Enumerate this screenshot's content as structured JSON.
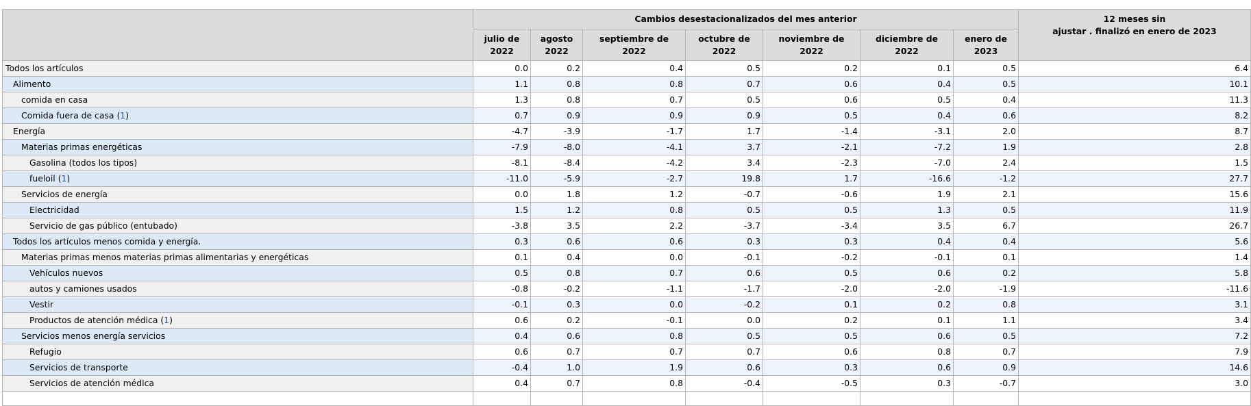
{
  "header": {
    "group_label": "Cambios desestacionalizados del mes anterior",
    "twelve_month_label_line1": "12 meses sin",
    "twelve_month_label_line2": "ajustar . finalizó en enero de 2023",
    "months": [
      {
        "line1": "julio de",
        "line2": "2022"
      },
      {
        "line1": "agosto",
        "line2": "2022"
      },
      {
        "line1": "septiembre de",
        "line2": "2022"
      },
      {
        "line1": "octubre de",
        "line2": "2022"
      },
      {
        "line1": "noviembre de",
        "line2": "2022"
      },
      {
        "line1": "diciembre de",
        "line2": "2022"
      },
      {
        "line1": "enero de",
        "line2": "2023"
      }
    ]
  },
  "rows": [
    {
      "label": "Todos los artículos",
      "level": 0,
      "footnote": "",
      "values": [
        "0.0",
        "0.2",
        "0.4",
        "0.5",
        "0.2",
        "0.1",
        "0.5"
      ],
      "annual": "6.4"
    },
    {
      "label": "Alimento",
      "level": 1,
      "footnote": "",
      "values": [
        "1.1",
        "0.8",
        "0.8",
        "0.7",
        "0.6",
        "0.4",
        "0.5"
      ],
      "annual": "10.1"
    },
    {
      "label": "comida en casa",
      "level": 2,
      "footnote": "",
      "values": [
        "1.3",
        "0.8",
        "0.7",
        "0.5",
        "0.6",
        "0.5",
        "0.4"
      ],
      "annual": "11.3"
    },
    {
      "label": "Comida fuera de casa",
      "level": 2,
      "footnote": "1",
      "values": [
        "0.7",
        "0.9",
        "0.9",
        "0.9",
        "0.5",
        "0.4",
        "0.6"
      ],
      "annual": "8.2"
    },
    {
      "label": "Energía",
      "level": 1,
      "footnote": "",
      "values": [
        "-4.7",
        "-3.9",
        "-1.7",
        "1.7",
        "-1.4",
        "-3.1",
        "2.0"
      ],
      "annual": "8.7"
    },
    {
      "label": "Materias primas energéticas",
      "level": 2,
      "footnote": "",
      "values": [
        "-7.9",
        "-8.0",
        "-4.1",
        "3.7",
        "-2.1",
        "-7.2",
        "1.9"
      ],
      "annual": "2.8"
    },
    {
      "label": "Gasolina (todos los tipos)",
      "level": 3,
      "footnote": "",
      "values": [
        "-8.1",
        "-8.4",
        "-4.2",
        "3.4",
        "-2.3",
        "-7.0",
        "2.4"
      ],
      "annual": "1.5"
    },
    {
      "label": "fueloil",
      "level": 3,
      "footnote": "1",
      "values": [
        "-11.0",
        "-5.9",
        "-2.7",
        "19.8",
        "1.7",
        "-16.6",
        "-1.2"
      ],
      "annual": "27.7"
    },
    {
      "label": "Servicios de energía",
      "level": 2,
      "footnote": "",
      "values": [
        "0.0",
        "1.8",
        "1.2",
        "-0.7",
        "-0.6",
        "1.9",
        "2.1"
      ],
      "annual": "15.6"
    },
    {
      "label": "Electricidad",
      "level": 3,
      "footnote": "",
      "values": [
        "1.5",
        "1.2",
        "0.8",
        "0.5",
        "0.5",
        "1.3",
        "0.5"
      ],
      "annual": "11.9"
    },
    {
      "label": "Servicio de gas público (entubado)",
      "level": 3,
      "footnote": "",
      "values": [
        "-3.8",
        "3.5",
        "2.2",
        "-3.7",
        "-3.4",
        "3.5",
        "6.7"
      ],
      "annual": "26.7"
    },
    {
      "label": "Todos los artículos menos comida y energía.",
      "level": 1,
      "footnote": "",
      "values": [
        "0.3",
        "0.6",
        "0.6",
        "0.3",
        "0.3",
        "0.4",
        "0.4"
      ],
      "annual": "5.6"
    },
    {
      "label": "Materias primas menos materias primas alimentarias y energéticas",
      "level": 2,
      "footnote": "",
      "values": [
        "0.1",
        "0.4",
        "0.0",
        "-0.1",
        "-0.2",
        "-0.1",
        "0.1"
      ],
      "annual": "1.4"
    },
    {
      "label": "Vehículos nuevos",
      "level": 3,
      "footnote": "",
      "values": [
        "0.5",
        "0.8",
        "0.7",
        "0.6",
        "0.5",
        "0.6",
        "0.2"
      ],
      "annual": "5.8"
    },
    {
      "label": "autos y camiones usados",
      "level": 3,
      "footnote": "",
      "values": [
        "-0.8",
        "-0.2",
        "-1.1",
        "-1.7",
        "-2.0",
        "-2.0",
        "-1.9"
      ],
      "annual": "-11.6"
    },
    {
      "label": "Vestir",
      "level": 3,
      "footnote": "",
      "values": [
        "-0.1",
        "0.3",
        "0.0",
        "-0.2",
        "0.1",
        "0.2",
        "0.8"
      ],
      "annual": "3.1"
    },
    {
      "label": "Productos de atención médica",
      "level": 3,
      "footnote": "1",
      "values": [
        "0.6",
        "0.2",
        "-0.1",
        "0.0",
        "0.2",
        "0.1",
        "1.1"
      ],
      "annual": "3.4"
    },
    {
      "label": "Servicios menos energía servicios",
      "level": 2,
      "footnote": "",
      "values": [
        "0.4",
        "0.6",
        "0.8",
        "0.5",
        "0.5",
        "0.6",
        "0.5"
      ],
      "annual": "7.2"
    },
    {
      "label": "Refugio",
      "level": 3,
      "footnote": "",
      "values": [
        "0.6",
        "0.7",
        "0.7",
        "0.7",
        "0.6",
        "0.8",
        "0.7"
      ],
      "annual": "7.9"
    },
    {
      "label": "Servicios de transporte",
      "level": 3,
      "footnote": "",
      "values": [
        "-0.4",
        "1.0",
        "1.9",
        "0.6",
        "0.3",
        "0.6",
        "0.9"
      ],
      "annual": "14.6"
    },
    {
      "label": "Servicios de atención médica",
      "level": 3,
      "footnote": "",
      "values": [
        "0.4",
        "0.7",
        "0.8",
        "-0.4",
        "-0.5",
        "0.3",
        "-0.7"
      ],
      "annual": "3.0"
    }
  ]
}
